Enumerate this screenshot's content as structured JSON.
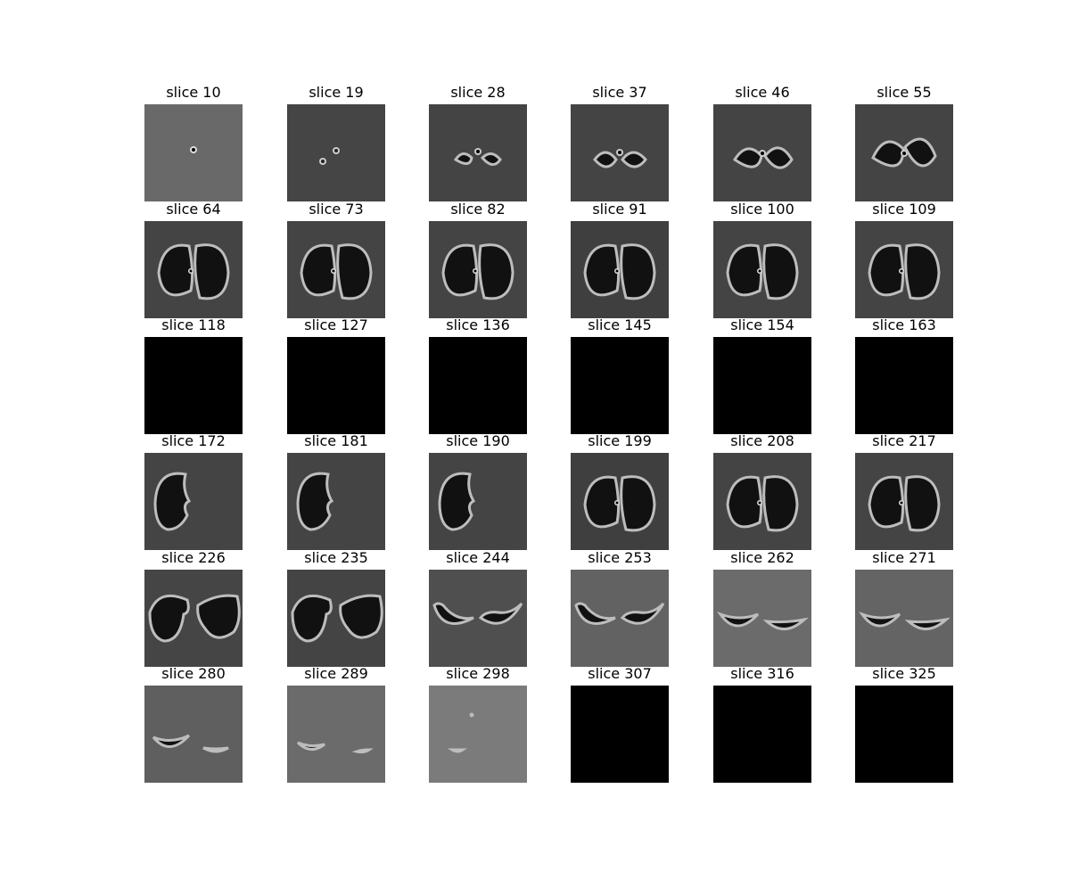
{
  "figure": {
    "panels": [
      {
        "title": "slice 10",
        "kind": "dot",
        "bg": "#696969"
      },
      {
        "title": "slice 19",
        "kind": "twodots",
        "bg": "#454545"
      },
      {
        "title": "slice 28",
        "kind": "small",
        "bg": "#444444"
      },
      {
        "title": "slice 37",
        "kind": "small2",
        "bg": "#444444"
      },
      {
        "title": "slice 46",
        "kind": "mid",
        "bg": "#444444"
      },
      {
        "title": "slice 55",
        "kind": "mid2",
        "bg": "#444444"
      },
      {
        "title": "slice 64",
        "kind": "lung",
        "bg": "#444444"
      },
      {
        "title": "slice 73",
        "kind": "lung",
        "bg": "#444444"
      },
      {
        "title": "slice 82",
        "kind": "lung",
        "bg": "#444444"
      },
      {
        "title": "slice 91",
        "kind": "lung",
        "bg": "#3f3f3f"
      },
      {
        "title": "slice 100",
        "kind": "lung",
        "bg": "#444444"
      },
      {
        "title": "slice 109",
        "kind": "lung",
        "bg": "#444444"
      },
      {
        "title": "slice 118",
        "kind": "black",
        "bg": "#000000"
      },
      {
        "title": "slice 127",
        "kind": "black",
        "bg": "#000000"
      },
      {
        "title": "slice 136",
        "kind": "black",
        "bg": "#000000"
      },
      {
        "title": "slice 145",
        "kind": "black",
        "bg": "#000000"
      },
      {
        "title": "slice 154",
        "kind": "black",
        "bg": "#000000"
      },
      {
        "title": "slice 163",
        "kind": "black",
        "bg": "#000000"
      },
      {
        "title": "slice 172",
        "kind": "left",
        "bg": "#444444"
      },
      {
        "title": "slice 181",
        "kind": "left",
        "bg": "#444444"
      },
      {
        "title": "slice 190",
        "kind": "left",
        "bg": "#444444"
      },
      {
        "title": "slice 199",
        "kind": "lung",
        "bg": "#3f3f3f"
      },
      {
        "title": "slice 208",
        "kind": "lung",
        "bg": "#444444"
      },
      {
        "title": "slice 217",
        "kind": "lung",
        "bg": "#444444"
      },
      {
        "title": "slice 226",
        "kind": "lower",
        "bg": "#454545"
      },
      {
        "title": "slice 235",
        "kind": "lower",
        "bg": "#444444"
      },
      {
        "title": "slice 244",
        "kind": "crescent",
        "bg": "#4f4f4f"
      },
      {
        "title": "slice 253",
        "kind": "crescent",
        "bg": "#626262"
      },
      {
        "title": "slice 262",
        "kind": "crescentsmall",
        "bg": "#6b6b6b"
      },
      {
        "title": "slice 271",
        "kind": "crescentsmall",
        "bg": "#646464"
      },
      {
        "title": "slice 280",
        "kind": "thin",
        "bg": "#5f5f5f"
      },
      {
        "title": "slice 289",
        "kind": "thin2",
        "bg": "#6b6b6b"
      },
      {
        "title": "slice 298",
        "kind": "tiny",
        "bg": "#7b7b7b"
      },
      {
        "title": "slice 307",
        "kind": "black",
        "bg": "#000000"
      },
      {
        "title": "slice 316",
        "kind": "black",
        "bg": "#000000"
      },
      {
        "title": "slice 325",
        "kind": "black",
        "bg": "#000000"
      }
    ]
  }
}
